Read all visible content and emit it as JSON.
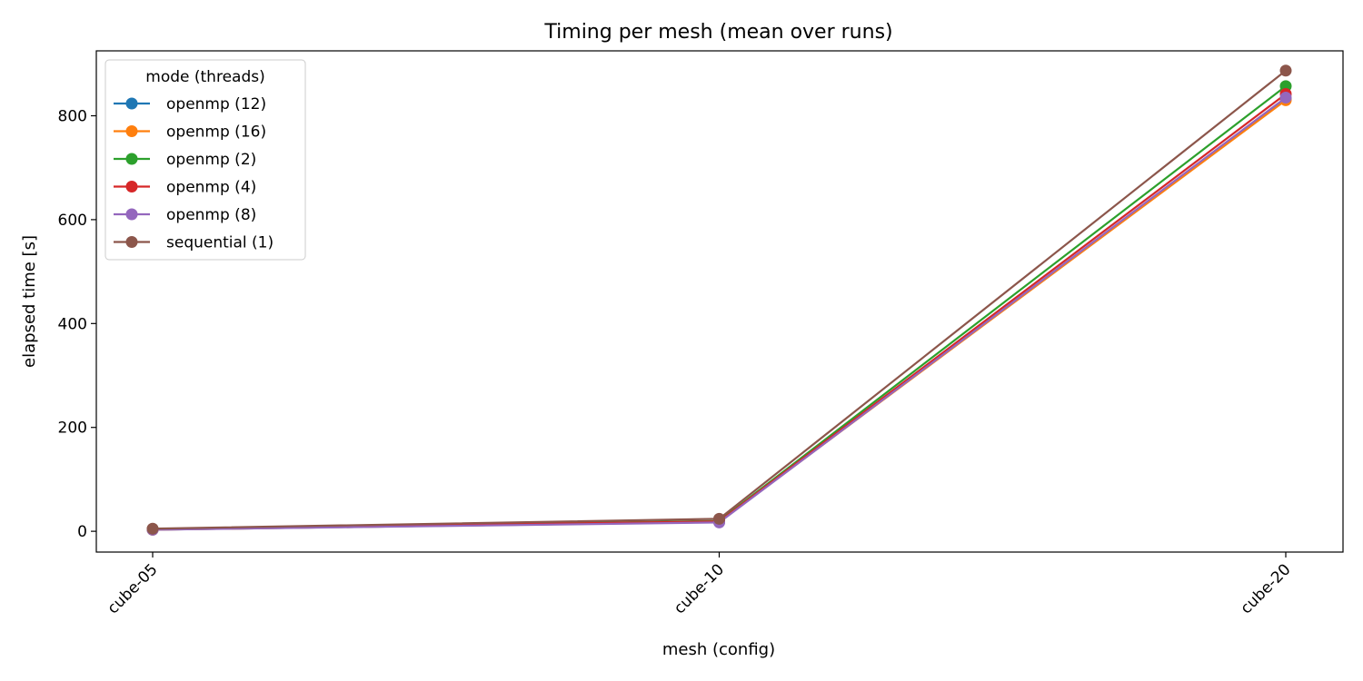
{
  "chart_data": {
    "type": "line",
    "title": "Timing per mesh (mean over runs)",
    "xlabel": "mesh (config)",
    "ylabel": "elapsed time [s]",
    "categories": [
      "cube-05",
      "cube-10",
      "cube-20"
    ],
    "ylim": [
      -40,
      925
    ],
    "yticks": [
      0,
      200,
      400,
      600,
      800
    ],
    "grid": false,
    "legend": {
      "title": "mode (threads)",
      "position": "top-left"
    },
    "series": [
      {
        "name": "openmp (12)",
        "color": "#1f77b4",
        "values": [
          3,
          18,
          832
        ]
      },
      {
        "name": "openmp (16)",
        "color": "#ff7f0e",
        "values": [
          3,
          18,
          830
        ]
      },
      {
        "name": "openmp (2)",
        "color": "#2ca02c",
        "values": [
          4,
          20,
          857
        ]
      },
      {
        "name": "openmp (4)",
        "color": "#d62728",
        "values": [
          4,
          19,
          842
        ]
      },
      {
        "name": "openmp (8)",
        "color": "#9467bd",
        "values": [
          3,
          17,
          835
        ]
      },
      {
        "name": "sequential (1)",
        "color": "#8c564b",
        "values": [
          5,
          24,
          887
        ]
      }
    ]
  }
}
